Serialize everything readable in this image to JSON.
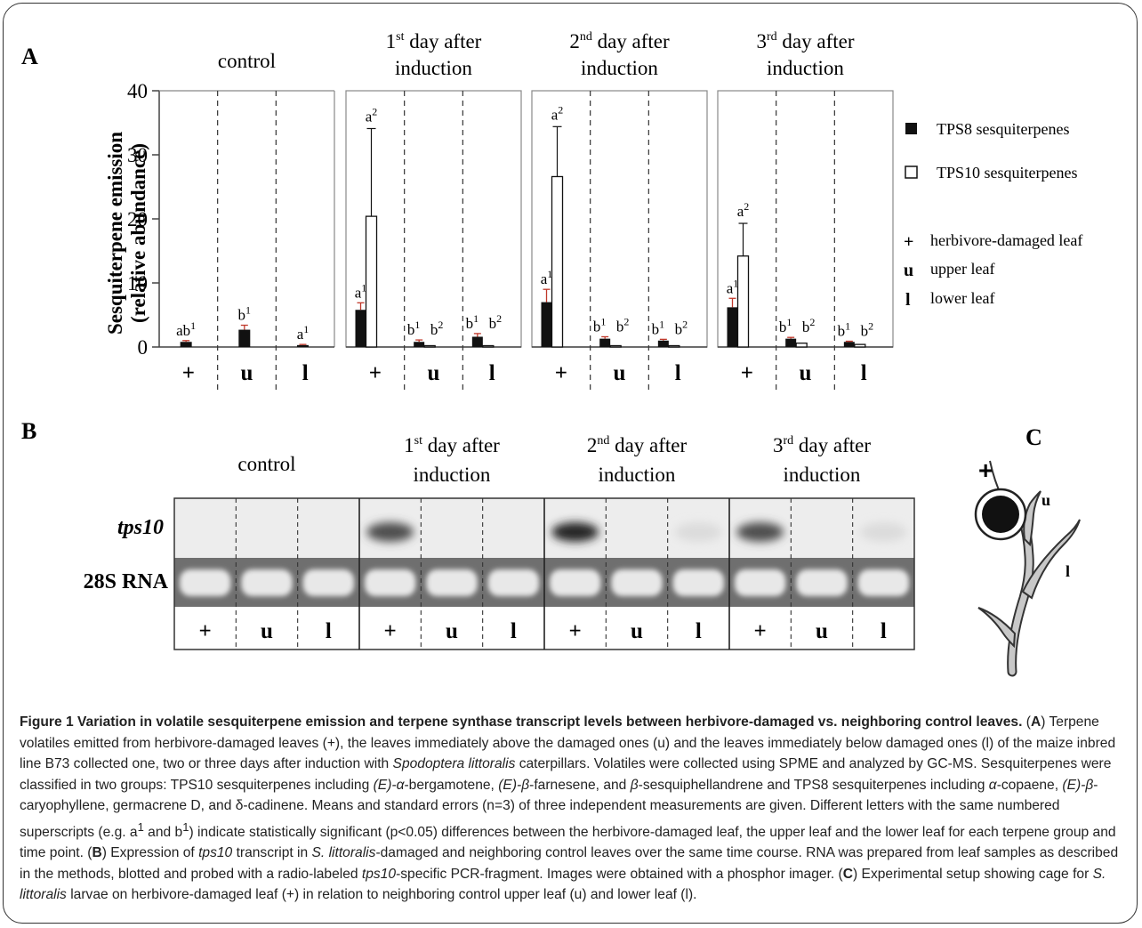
{
  "panel_labels": {
    "a": "A",
    "b": "B",
    "c": "C"
  },
  "chart_data": {
    "type": "bar",
    "ylabel_line1": "Sesquiterpene emission",
    "ylabel_line2": "(relative abundance)",
    "ylim": [
      0,
      40
    ],
    "yticks": [
      0,
      10,
      20,
      30,
      40
    ],
    "leaf_labels": [
      "+",
      "u",
      "l"
    ],
    "series_names": [
      "TPS8 sesquiterpenes",
      "TPS10 sesquiterpenes"
    ],
    "panels": [
      {
        "title_lines": [
          "control"
        ],
        "sup": "",
        "groups": [
          {
            "leaf": "+",
            "tps8": 0.8,
            "tps8_err": 0.2,
            "tps10": null,
            "tps10_err": null,
            "label8": "ab",
            "sup8": "1",
            "label10": "",
            "sup10": ""
          },
          {
            "leaf": "u",
            "tps8": 2.7,
            "tps8_err": 0.7,
            "tps10": null,
            "tps10_err": null,
            "label8": "b",
            "sup8": "1",
            "label10": "",
            "sup10": ""
          },
          {
            "leaf": "l",
            "tps8": 0.3,
            "tps8_err": 0.1,
            "tps10": null,
            "tps10_err": null,
            "label8": "a",
            "sup8": "1",
            "label10": "",
            "sup10": ""
          }
        ]
      },
      {
        "title_lines": [
          "1",
          " day after",
          "induction"
        ],
        "sup": "st",
        "groups": [
          {
            "leaf": "+",
            "tps8": 5.8,
            "tps8_err": 1.1,
            "tps10": 20.4,
            "tps10_err": 13.7,
            "label8": "a",
            "sup8": "1",
            "label10": "a",
            "sup10": "2"
          },
          {
            "leaf": "u",
            "tps8": 0.8,
            "tps8_err": 0.3,
            "tps10": 0.1,
            "tps10_err": 0.05,
            "label8": "b",
            "sup8": "1",
            "label10": "b",
            "sup10": "2"
          },
          {
            "leaf": "l",
            "tps8": 1.6,
            "tps8_err": 0.5,
            "tps10": 0.1,
            "tps10_err": 0.05,
            "label8": "b",
            "sup8": "1",
            "label10": "b",
            "sup10": "2"
          }
        ]
      },
      {
        "title_lines": [
          "2",
          " day after",
          "induction"
        ],
        "sup": "nd",
        "groups": [
          {
            "leaf": "+",
            "tps8": 7.0,
            "tps8_err": 2.0,
            "tps10": 26.6,
            "tps10_err": 7.8,
            "label8": "a",
            "sup8": "1",
            "label10": "a",
            "sup10": "2"
          },
          {
            "leaf": "u",
            "tps8": 1.3,
            "tps8_err": 0.3,
            "tps10": 0.2,
            "tps10_err": 0.05,
            "label8": "b",
            "sup8": "1",
            "label10": "b",
            "sup10": "2"
          },
          {
            "leaf": "l",
            "tps8": 1.0,
            "tps8_err": 0.2,
            "tps10": 0.1,
            "tps10_err": 0.05,
            "label8": "b",
            "sup8": "1",
            "label10": "b",
            "sup10": "2"
          }
        ]
      },
      {
        "title_lines": [
          "3",
          " day after",
          "induction"
        ],
        "sup": "rd",
        "groups": [
          {
            "leaf": "+",
            "tps8": 6.2,
            "tps8_err": 1.4,
            "tps10": 14.2,
            "tps10_err": 5.1,
            "label8": "a",
            "sup8": "1",
            "label10": "a",
            "sup10": "2"
          },
          {
            "leaf": "u",
            "tps8": 1.3,
            "tps8_err": 0.2,
            "tps10": 0.6,
            "tps10_err": 0.1,
            "label8": "b",
            "sup8": "1",
            "label10": "b",
            "sup10": "2"
          },
          {
            "leaf": "l",
            "tps8": 0.8,
            "tps8_err": 0.1,
            "tps10": 0.4,
            "tps10_err": 0.1,
            "label8": "b",
            "sup8": "1",
            "label10": "b",
            "sup10": "2"
          }
        ]
      }
    ]
  },
  "legend": {
    "tps8": "TPS8 sesquiterpenes",
    "tps10": "TPS10 sesquiterpenes",
    "plus_sym": "+",
    "plus": "herbivore-damaged leaf",
    "u_sym": "u",
    "u": "upper leaf",
    "l_sym": "l",
    "l": "lower leaf"
  },
  "blot": {
    "row1": "tps10",
    "row2": "28S RNA",
    "tps10_intensity": [
      [
        0,
        0,
        0
      ],
      [
        0.75,
        0,
        0
      ],
      [
        0.95,
        0,
        0.05
      ],
      [
        0.75,
        0,
        0.05
      ]
    ]
  },
  "setup": {
    "plus": "+",
    "u": "u",
    "l": "l"
  },
  "caption": {
    "title": "Figure 1 Variation in volatile sesquiterpene emission and terpene synthase transcript levels between herbivore-damaged vs. neighboring control leaves.",
    "p1": " (",
    "a": "A",
    "p2": ") Terpene volatiles emitted from herbivore-damaged leaves (+), the leaves immediately above the damaged ones (u) and the leaves immediately below damaged ones (l) of the maize inbred line B73 collected one, two or three days after induction with ",
    "species": "Spodoptera littoralis",
    "p3": " caterpillars. Volatiles were collected using SPME and analyzed by GC-MS. Sesquiterpenes were classified in two groups: TPS10 sesquiterpenes including ",
    "c1i": "(E)-α",
    "c1": "-bergamotene, ",
    "c2i": "(E)-β",
    "c2": "-farnesene, and ",
    "c3i": "β",
    "c3": "-sesquiphellandrene and TPS8 sesquiterpenes including ",
    "c4i": "α",
    "c4": "-copaene, ",
    "c5i": "(E)-β",
    "c5": "-caryophyllene, germacrene D, and δ-cadinene. Means and standard errors (n=3) of three independent measurements are given. Different letters with the same numbered superscripts (e.g. a",
    "s1": "1",
    "p4": " and b",
    "s2": "1",
    "p5": ") indicate statistically significant (p<0.05) differences between the herbivore-damaged leaf, the upper leaf and the lower leaf for each terpene group and time point. (",
    "b": "B",
    "p6": ") Expression of ",
    "tps10a": "tps10",
    "p7": " transcript in ",
    "sl1": "S. littoralis",
    "p8": "-damaged and neighboring control leaves over the same time course. RNA was prepared from leaf samples as described in the methods, blotted and probed with a radio-labeled ",
    "tps10b": "tps10",
    "p9": "-specific PCR-fragment. Images were obtained with a phosphor imager. (",
    "c": "C",
    "p10": ") Experimental setup showing cage for ",
    "sl2": "S. littoralis",
    "p11": " larvae on herbivore-damaged leaf (+) in relation to neighboring control upper leaf (u) and lower leaf (l)."
  }
}
